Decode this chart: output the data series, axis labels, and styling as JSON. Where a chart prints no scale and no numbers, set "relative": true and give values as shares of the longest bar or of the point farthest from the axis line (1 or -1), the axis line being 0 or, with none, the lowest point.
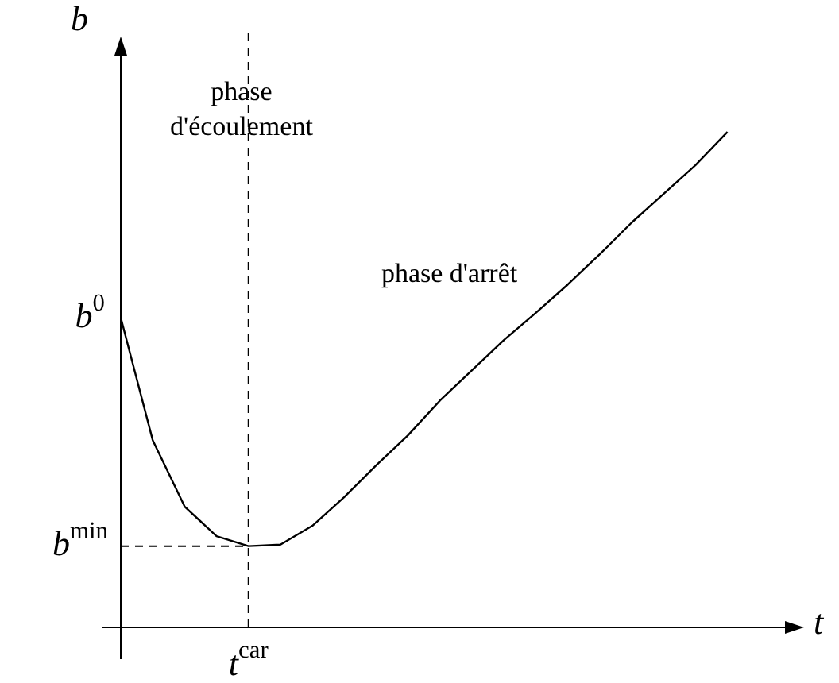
{
  "chart_data": {
    "type": "line",
    "relative": true,
    "xlabel": "t",
    "ylabel": "b",
    "categories": [
      null,
      null,
      null,
      null,
      null,
      null,
      null,
      null,
      null,
      null,
      null,
      null,
      null,
      null,
      null,
      null,
      null,
      null,
      null,
      null,
      null,
      null
    ],
    "series": [
      {
        "color": "#000000",
        "values": [
          0.625,
          0.378,
          0.244,
          0.184,
          0.164,
          0.167,
          0.205,
          0.263,
          0.327,
          0.388,
          0.458,
          0.519,
          0.58,
          0.635,
          0.692,
          0.753,
          0.817,
          0.875,
          0.933,
          1,
          null,
          null
        ]
      }
    ],
    "ref_lines": [
      {
        "axis": "x",
        "label": "t$^{car}$",
        "line_style": "dashed"
      },
      {
        "axis": "y",
        "value": 0.164,
        "label": "b$^{min}$",
        "line_style": "dashed"
      }
    ],
    "annotations": [
      "b$^{0}$",
      "phase d'écoulement",
      "phase d'arrêt"
    ]
  }
}
